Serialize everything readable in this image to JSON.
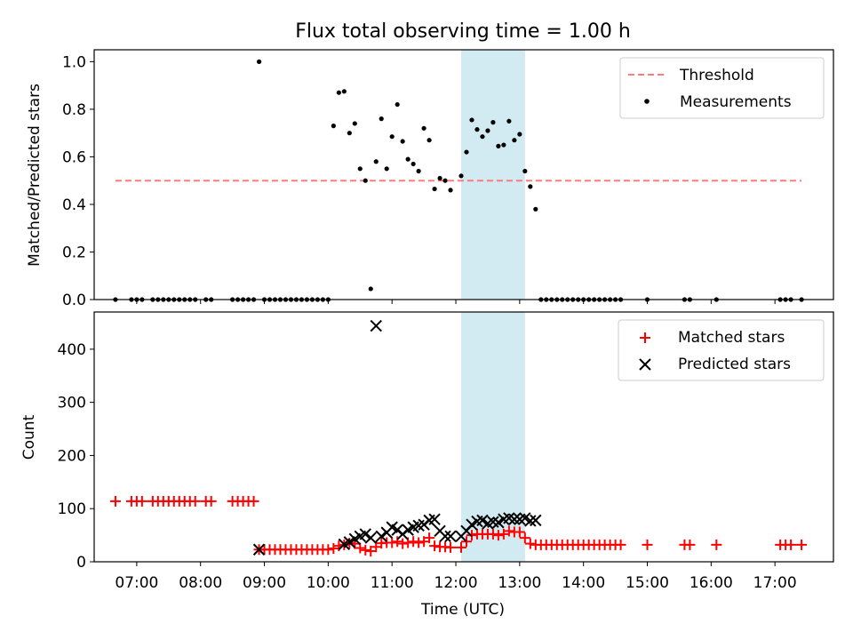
{
  "chart_data": [
    {
      "type": "scatter",
      "title": "Flux total observing time = 1.00 h",
      "ylabel": "Matched/Predicted stars",
      "xlabel": "",
      "xlim": [
        "06:20",
        "17:55"
      ],
      "ylim": [
        0,
        1.05
      ],
      "y_ticks": [
        "0.0",
        "0.2",
        "0.4",
        "0.6",
        "0.8",
        "1.0"
      ],
      "shaded_window": [
        "12:05",
        "13:05"
      ],
      "shade_color": "#add8e6",
      "legend_position": "top-right",
      "series": [
        {
          "name": "Threshold",
          "style": "dashed-line",
          "color": "#ff7b7b",
          "x": [
            "06:40",
            "17:25"
          ],
          "y": [
            0.5,
            0.5
          ]
        },
        {
          "name": "Measurements",
          "style": "dot",
          "color": "#000000",
          "x": [
            "06:40",
            "06:55",
            "07:00",
            "07:05",
            "07:15",
            "07:20",
            "07:25",
            "07:30",
            "07:35",
            "07:40",
            "07:45",
            "07:50",
            "07:55",
            "08:05",
            "08:10",
            "08:30",
            "08:35",
            "08:40",
            "08:45",
            "08:50",
            "08:55",
            "09:00",
            "09:05",
            "09:10",
            "09:15",
            "09:20",
            "09:25",
            "09:30",
            "09:35",
            "09:40",
            "09:45",
            "09:50",
            "09:55",
            "10:00",
            "10:05",
            "10:10",
            "10:15",
            "10:20",
            "10:25",
            "10:30",
            "10:35",
            "10:40",
            "10:45",
            "10:50",
            "10:55",
            "11:00",
            "11:05",
            "11:10",
            "11:15",
            "11:20",
            "11:25",
            "11:30",
            "11:35",
            "11:40",
            "11:45",
            "11:50",
            "11:55",
            "12:05",
            "12:10",
            "12:15",
            "12:20",
            "12:25",
            "12:30",
            "12:35",
            "12:40",
            "12:45",
            "12:50",
            "12:55",
            "13:00",
            "13:05",
            "13:10",
            "13:15",
            "13:20",
            "13:25",
            "13:30",
            "13:35",
            "13:40",
            "13:45",
            "13:50",
            "13:55",
            "14:00",
            "14:05",
            "14:10",
            "14:15",
            "14:20",
            "14:25",
            "14:30",
            "14:35",
            "15:00",
            "15:35",
            "15:40",
            "16:05",
            "17:05",
            "17:10",
            "17:15",
            "17:25"
          ],
          "y": [
            0,
            0,
            0,
            0,
            0,
            0,
            0,
            0,
            0,
            0,
            0,
            0,
            0,
            0,
            0,
            0,
            0,
            0,
            0,
            0,
            1.0,
            0,
            0,
            0,
            0,
            0,
            0,
            0,
            0,
            0,
            0,
            0,
            0,
            0,
            0.73,
            0.87,
            0.875,
            0.7,
            0.74,
            0.55,
            0.5,
            0.045,
            0.58,
            0.76,
            0.55,
            0.685,
            0.82,
            0.665,
            0.59,
            0.57,
            0.54,
            0.72,
            0.67,
            0.465,
            0.51,
            0.5,
            0.46,
            0.52,
            0.62,
            0.755,
            0.715,
            0.685,
            0.71,
            0.745,
            0.645,
            0.65,
            0.75,
            0.67,
            0.695,
            0.54,
            0.475,
            0.38,
            0,
            0,
            0,
            0,
            0,
            0,
            0,
            0,
            0,
            0,
            0,
            0,
            0,
            0,
            0,
            0,
            0,
            0,
            0,
            0,
            0,
            0,
            0,
            0
          ]
        }
      ]
    },
    {
      "type": "scatter",
      "xlabel": "Time (UTC)",
      "ylabel": "Count",
      "xlim": [
        "06:20",
        "17:55"
      ],
      "ylim": [
        0,
        470
      ],
      "x_ticks": [
        "07:00",
        "08:00",
        "09:00",
        "10:00",
        "11:00",
        "12:00",
        "13:00",
        "14:00",
        "15:00",
        "16:00",
        "17:00"
      ],
      "y_ticks": [
        "0",
        "100",
        "200",
        "300",
        "400"
      ],
      "shaded_window": [
        "12:05",
        "13:05"
      ],
      "shade_color": "#add8e6",
      "legend_position": "top-right",
      "series": [
        {
          "name": "Matched stars",
          "style": "plus",
          "color": "#ff0000",
          "x": [
            "06:40",
            "06:55",
            "07:00",
            "07:05",
            "07:15",
            "07:20",
            "07:25",
            "07:30",
            "07:35",
            "07:40",
            "07:45",
            "07:50",
            "07:55",
            "08:05",
            "08:10",
            "08:30",
            "08:35",
            "08:40",
            "08:45",
            "08:50",
            "08:55",
            "09:00",
            "09:05",
            "09:10",
            "09:15",
            "09:20",
            "09:25",
            "09:30",
            "09:35",
            "09:40",
            "09:45",
            "09:50",
            "09:55",
            "10:00",
            "10:05",
            "10:10",
            "10:15",
            "10:20",
            "10:25",
            "10:30",
            "10:35",
            "10:40",
            "10:45",
            "10:50",
            "10:55",
            "11:00",
            "11:05",
            "11:10",
            "11:15",
            "11:20",
            "11:25",
            "11:30",
            "11:35",
            "11:40",
            "11:45",
            "11:50",
            "11:55",
            "12:05",
            "12:10",
            "12:15",
            "12:20",
            "12:25",
            "12:30",
            "12:35",
            "12:40",
            "12:45",
            "12:50",
            "12:55",
            "13:00",
            "13:05",
            "13:10",
            "13:15",
            "13:20",
            "13:25",
            "13:30",
            "13:35",
            "13:40",
            "13:45",
            "13:50",
            "13:55",
            "14:00",
            "14:05",
            "14:10",
            "14:15",
            "14:20",
            "14:25",
            "14:30",
            "14:35",
            "15:00",
            "15:35",
            "15:40",
            "16:05",
            "17:05",
            "17:10",
            "17:15",
            "17:25"
          ],
          "y": [
            114,
            114,
            114,
            114,
            114,
            114,
            114,
            114,
            114,
            114,
            114,
            114,
            114,
            114,
            114,
            114,
            114,
            114,
            114,
            114,
            23,
            23,
            23,
            23,
            23,
            23,
            23,
            23,
            23,
            23,
            23,
            23,
            23,
            23,
            25,
            30,
            32,
            35,
            34,
            26,
            22,
            20,
            28,
            35,
            36,
            36,
            38,
            34,
            36,
            38,
            36,
            38,
            45,
            30,
            28,
            28,
            27,
            27,
            38,
            50,
            52,
            52,
            52,
            52,
            50,
            52,
            58,
            56,
            56,
            45,
            34,
            32,
            32,
            32,
            32,
            32,
            32,
            32,
            32,
            32,
            32,
            32,
            32,
            32,
            32,
            32,
            32,
            32,
            32,
            32,
            32,
            32,
            32,
            32,
            32,
            32
          ]
        },
        {
          "name": "Predicted stars",
          "style": "x",
          "color": "#000000",
          "x": [
            "08:55",
            "10:15",
            "10:20",
            "10:25",
            "10:30",
            "10:35",
            "10:40",
            "10:45",
            "10:50",
            "10:55",
            "11:00",
            "11:05",
            "11:10",
            "11:15",
            "11:20",
            "11:25",
            "11:30",
            "11:35",
            "11:40",
            "11:45",
            "11:50",
            "11:55",
            "12:05",
            "12:10",
            "12:15",
            "12:20",
            "12:25",
            "12:30",
            "12:35",
            "12:40",
            "12:45",
            "12:50",
            "12:55",
            "13:00",
            "13:05",
            "13:10",
            "13:15"
          ],
          "y": [
            23,
            33,
            37,
            43,
            48,
            52,
            45,
            444,
            48,
            55,
            65,
            60,
            52,
            60,
            65,
            68,
            70,
            78,
            80,
            58,
            48,
            48,
            48,
            58,
            70,
            76,
            78,
            72,
            75,
            74,
            80,
            82,
            80,
            80,
            82,
            77,
            78
          ]
        }
      ]
    }
  ]
}
